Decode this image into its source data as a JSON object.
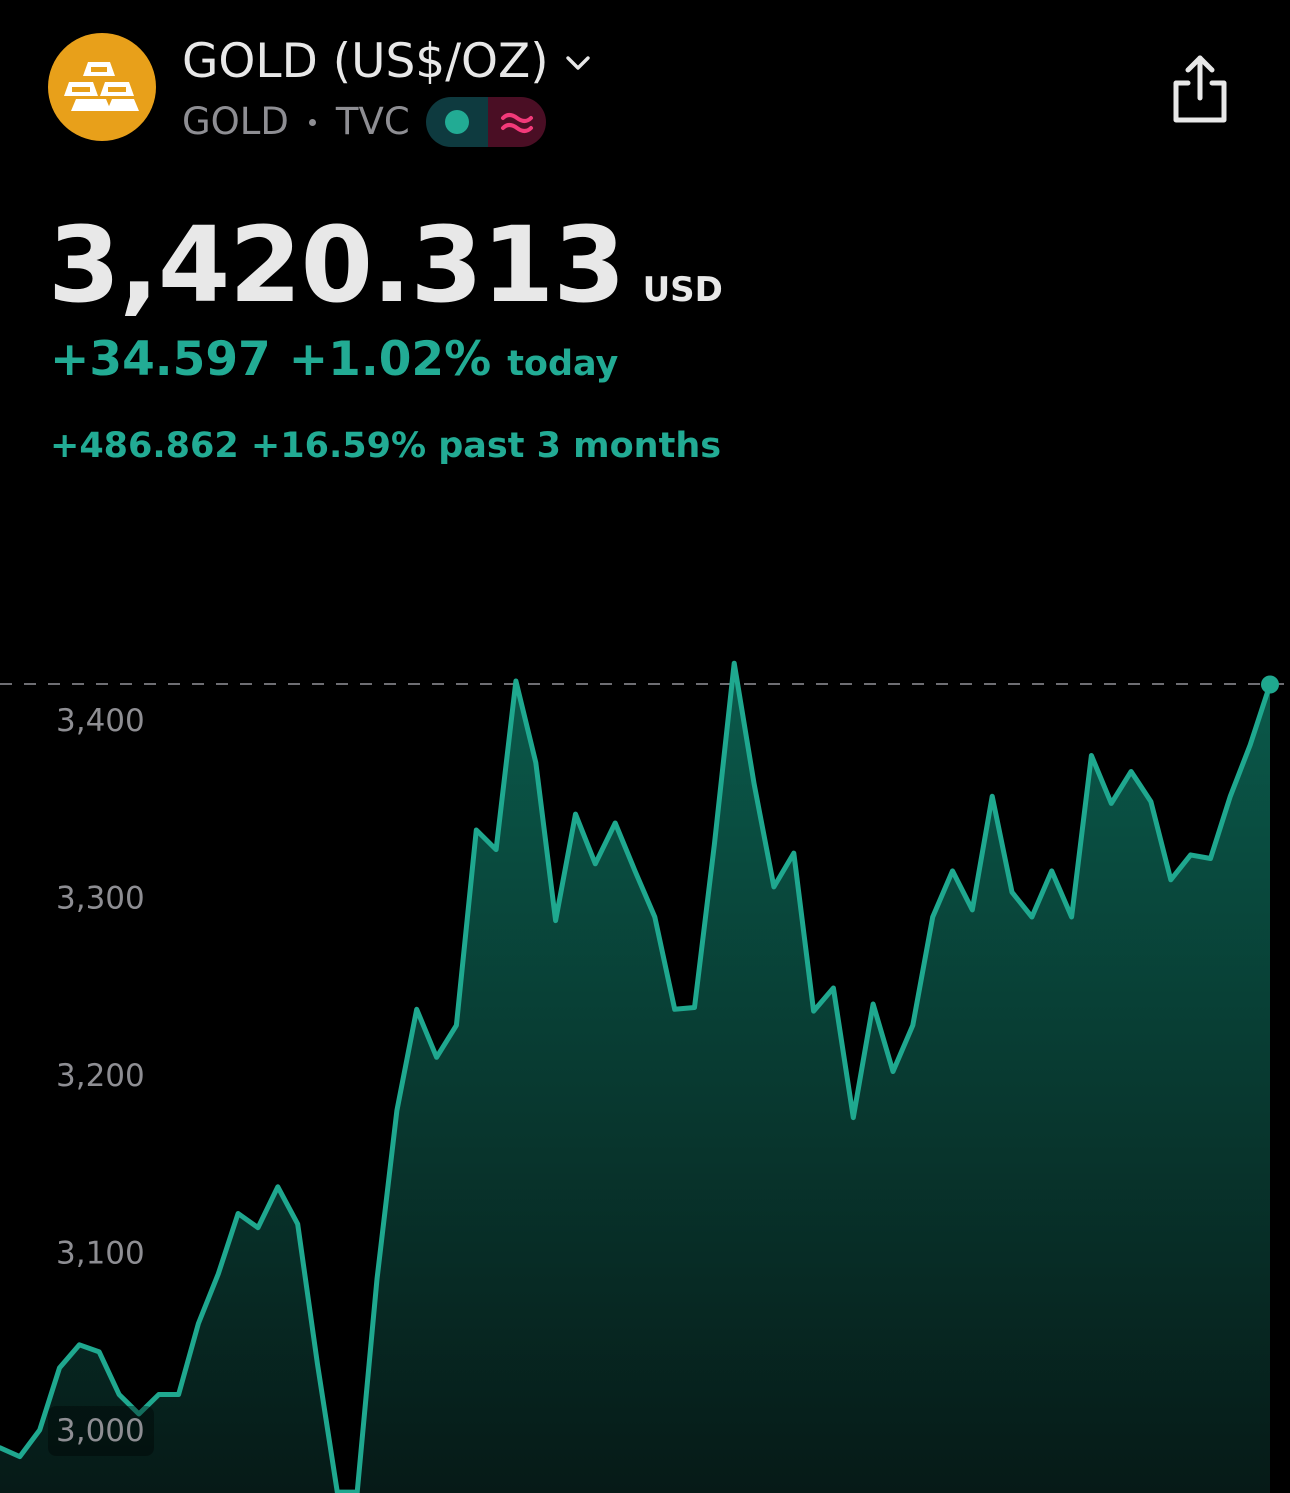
{
  "header": {
    "title": "GOLD (US$/OZ)",
    "symbol": "GOLD",
    "exchange": "TVC",
    "logo_icon": "gold-bars-icon",
    "logo_color": "#E8A01A",
    "market_status_icon": "market-open-dot-icon",
    "data_icon": "approx-wave-icon",
    "share_icon": "share-icon"
  },
  "quote": {
    "price": "3,420.313",
    "currency": "USD",
    "change_abs": "+34.597",
    "change_pct": "+1.02%",
    "change_label": "today",
    "period_change_text": "+486.862 +16.59% past 3 months"
  },
  "colors": {
    "background": "#000000",
    "positive": "#22AB94",
    "line": "#1FA88F",
    "negative_accent": "#F23A7A",
    "muted": "#8E8E93"
  },
  "chart_data": {
    "type": "area",
    "title": "",
    "xlabel": "",
    "ylabel": "",
    "ylim": [
      2960,
      3430
    ],
    "yticks": [
      "3,400",
      "3,300",
      "3,200",
      "3,100",
      "3,000"
    ],
    "ytick_values": [
      3400,
      3300,
      3200,
      3100,
      3000
    ],
    "reference_line": 3420.313,
    "grid": false,
    "last_point": 3420.313,
    "series": [
      {
        "values": [
          2990,
          2985,
          3000,
          3035,
          3048,
          3044,
          3020,
          3009,
          3020,
          3020,
          3060,
          3088,
          3122,
          3114,
          3137,
          3116,
          3037,
          2965,
          2965,
          3085,
          3180,
          3237,
          3210,
          3228,
          3338,
          3327,
          3422,
          3376,
          3287,
          3347,
          3319,
          3342,
          3315,
          3289,
          3237,
          3238,
          3330,
          3432,
          3364,
          3306,
          3325,
          3236,
          3249,
          3176,
          3240,
          3202,
          3228,
          3289,
          3315,
          3293,
          3357,
          3303,
          3289,
          3315,
          3289,
          3380,
          3353,
          3371,
          3354,
          3310,
          3324,
          3322,
          3357,
          3386,
          3420
        ]
      }
    ]
  }
}
